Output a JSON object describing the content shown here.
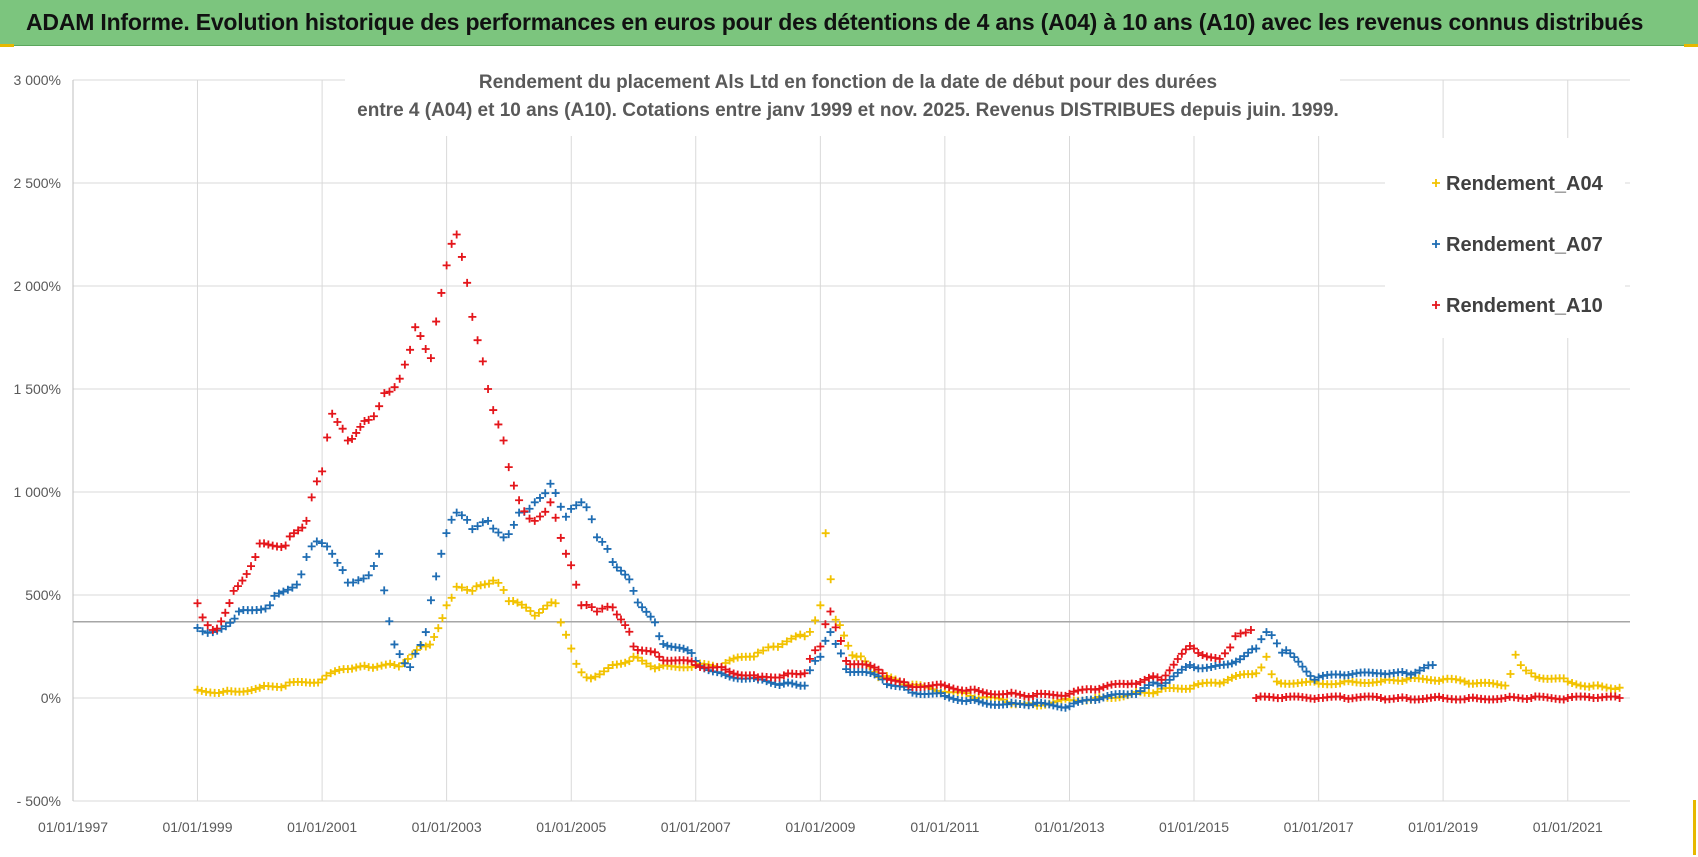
{
  "banner": {
    "title": "ADAM Informe. Evolution historique des performances en euros pour des détentions de 4 ans (A04) à 10 ans (A10) avec les revenus connus distribués"
  },
  "chart_data": {
    "type": "scatter",
    "title_lines": [
      "Rendement du placement Als Ltd en fonction de la date de début pour des durées",
      "entre 4 (A04) et 10 ans (A10). Cotations entre janv 1999 et nov. 2025. Revenus DISTRIBUES depuis juin. 1999."
    ],
    "xlabel": "",
    "ylabel": "",
    "x_range": [
      "1997-01-01",
      "2022-01-01"
    ],
    "ylim": [
      -500,
      3000
    ],
    "x_ticks": [
      "01/01/1997",
      "01/01/1999",
      "01/01/2001",
      "01/01/2003",
      "01/01/2005",
      "01/01/2007",
      "01/01/2009",
      "01/01/2011",
      "01/01/2013",
      "01/01/2015",
      "01/01/2017",
      "01/01/2019",
      "01/01/2021"
    ],
    "y_ticks": [
      {
        "value": 3000,
        "label": "3 000%"
      },
      {
        "value": 2500,
        "label": "2 500%"
      },
      {
        "value": 2000,
        "label": "2 000%"
      },
      {
        "value": 1500,
        "label": "1 500%"
      },
      {
        "value": 1000,
        "label": "1 000%"
      },
      {
        "value": 500,
        "label": "500%"
      },
      {
        "value": 0,
        "label": "0%"
      },
      {
        "value": -500,
        "label": "- 500%"
      }
    ],
    "grid": true,
    "reference_line_value": 370,
    "legend_position": "top-right",
    "marker": "+",
    "series": [
      {
        "name": "Rendement_A04",
        "color": "#f2c200",
        "points": [
          [
            "1999-01-01",
            40
          ],
          [
            "1999-06-01",
            30
          ],
          [
            "2000-01-01",
            50
          ],
          [
            "2000-06-01",
            60
          ],
          [
            "2001-01-01",
            90
          ],
          [
            "2001-06-01",
            140
          ],
          [
            "2001-10-01",
            150
          ],
          [
            "2002-03-01",
            160
          ],
          [
            "2002-09-01",
            250
          ],
          [
            "2003-01-01",
            450
          ],
          [
            "2003-03-01",
            540
          ],
          [
            "2003-06-01",
            520
          ],
          [
            "2003-10-01",
            570
          ],
          [
            "2004-01-01",
            470
          ],
          [
            "2004-06-01",
            400
          ],
          [
            "2004-10-01",
            460
          ],
          [
            "2005-01-01",
            240
          ],
          [
            "2005-04-01",
            100
          ],
          [
            "2005-09-01",
            160
          ],
          [
            "2006-01-01",
            200
          ],
          [
            "2006-06-01",
            150
          ],
          [
            "2007-01-01",
            160
          ],
          [
            "2007-06-01",
            150
          ],
          [
            "2008-01-01",
            220
          ],
          [
            "2008-04-01",
            250
          ],
          [
            "2008-10-01",
            300
          ],
          [
            "2009-01-01",
            450
          ],
          [
            "2009-02-01",
            800
          ],
          [
            "2009-04-01",
            380
          ],
          [
            "2009-08-01",
            200
          ],
          [
            "2010-01-01",
            100
          ],
          [
            "2010-06-01",
            60
          ],
          [
            "2011-01-01",
            30
          ],
          [
            "2011-06-01",
            10
          ],
          [
            "2012-01-01",
            -20
          ],
          [
            "2012-06-01",
            -30
          ],
          [
            "2013-01-01",
            -10
          ],
          [
            "2013-06-01",
            0
          ],
          [
            "2014-01-01",
            20
          ],
          [
            "2014-06-01",
            30
          ],
          [
            "2015-01-01",
            60
          ],
          [
            "2015-06-01",
            70
          ],
          [
            "2016-01-01",
            120
          ],
          [
            "2016-03-01",
            200
          ],
          [
            "2016-05-01",
            80
          ],
          [
            "2017-01-01",
            70
          ],
          [
            "2017-06-01",
            80
          ],
          [
            "2018-01-01",
            80
          ],
          [
            "2018-06-01",
            90
          ],
          [
            "2019-01-01",
            90
          ],
          [
            "2019-06-01",
            70
          ],
          [
            "2020-01-01",
            60
          ],
          [
            "2020-03-01",
            210
          ],
          [
            "2020-06-01",
            120
          ],
          [
            "2021-01-01",
            80
          ],
          [
            "2021-06-01",
            60
          ],
          [
            "2021-11-01",
            50
          ]
        ]
      },
      {
        "name": "Rendement_A07",
        "color": "#1f6db3",
        "points": [
          [
            "1999-01-01",
            340
          ],
          [
            "1999-04-01",
            320
          ],
          [
            "1999-09-01",
            420
          ],
          [
            "2000-03-01",
            450
          ],
          [
            "2000-09-01",
            600
          ],
          [
            "2000-12-01",
            760
          ],
          [
            "2001-03-01",
            700
          ],
          [
            "2001-06-01",
            560
          ],
          [
            "2001-09-01",
            580
          ],
          [
            "2001-12-01",
            700
          ],
          [
            "2002-03-01",
            260
          ],
          [
            "2002-06-01",
            150
          ],
          [
            "2002-09-01",
            320
          ],
          [
            "2002-12-01",
            700
          ],
          [
            "2003-03-01",
            900
          ],
          [
            "2003-06-01",
            820
          ],
          [
            "2003-09-01",
            860
          ],
          [
            "2003-12-01",
            780
          ],
          [
            "2004-03-01",
            900
          ],
          [
            "2004-06-01",
            950
          ],
          [
            "2004-09-01",
            1040
          ],
          [
            "2004-12-01",
            880
          ],
          [
            "2005-03-01",
            950
          ],
          [
            "2005-06-01",
            780
          ],
          [
            "2005-09-01",
            660
          ],
          [
            "2006-01-01",
            520
          ],
          [
            "2006-06-01",
            300
          ],
          [
            "2007-01-01",
            180
          ],
          [
            "2007-06-01",
            120
          ],
          [
            "2008-01-01",
            90
          ],
          [
            "2008-06-01",
            70
          ],
          [
            "2008-10-01",
            60
          ],
          [
            "2009-01-01",
            200
          ],
          [
            "2009-03-01",
            320
          ],
          [
            "2009-06-01",
            140
          ],
          [
            "2010-01-01",
            90
          ],
          [
            "2010-06-01",
            40
          ],
          [
            "2011-01-01",
            10
          ],
          [
            "2011-06-01",
            -10
          ],
          [
            "2012-01-01",
            -30
          ],
          [
            "2012-06-01",
            -30
          ],
          [
            "2013-01-01",
            -40
          ],
          [
            "2013-06-01",
            -10
          ],
          [
            "2014-01-01",
            20
          ],
          [
            "2014-06-01",
            70
          ],
          [
            "2015-01-01",
            150
          ],
          [
            "2015-06-01",
            160
          ],
          [
            "2016-01-01",
            240
          ],
          [
            "2016-03-01",
            320
          ],
          [
            "2016-06-01",
            220
          ],
          [
            "2017-01-01",
            100
          ],
          [
            "2017-06-01",
            110
          ],
          [
            "2018-01-01",
            120
          ],
          [
            "2018-06-01",
            120
          ],
          [
            "2018-11-01",
            160
          ]
        ]
      },
      {
        "name": "Rendement_A10",
        "color": "#e4161b",
        "points": [
          [
            "1999-01-01",
            460
          ],
          [
            "1999-04-01",
            330
          ],
          [
            "1999-08-01",
            520
          ],
          [
            "2000-01-01",
            750
          ],
          [
            "2000-06-01",
            740
          ],
          [
            "2000-10-01",
            860
          ],
          [
            "2001-01-01",
            1100
          ],
          [
            "2001-03-01",
            1380
          ],
          [
            "2001-06-01",
            1250
          ],
          [
            "2001-10-01",
            1350
          ],
          [
            "2002-01-01",
            1480
          ],
          [
            "2002-04-01",
            1550
          ],
          [
            "2002-07-01",
            1800
          ],
          [
            "2002-10-01",
            1650
          ],
          [
            "2003-01-01",
            2100
          ],
          [
            "2003-03-01",
            2250
          ],
          [
            "2003-06-01",
            1850
          ],
          [
            "2003-09-01",
            1500
          ],
          [
            "2003-12-01",
            1250
          ],
          [
            "2004-03-01",
            960
          ],
          [
            "2004-06-01",
            860
          ],
          [
            "2004-09-01",
            950
          ],
          [
            "2004-12-01",
            700
          ],
          [
            "2005-03-01",
            450
          ],
          [
            "2005-06-01",
            420
          ],
          [
            "2005-09-01",
            440
          ],
          [
            "2006-01-01",
            250
          ],
          [
            "2006-06-01",
            200
          ],
          [
            "2007-01-01",
            160
          ],
          [
            "2007-06-01",
            150
          ],
          [
            "2008-01-01",
            100
          ],
          [
            "2008-06-01",
            110
          ],
          [
            "2008-10-01",
            120
          ],
          [
            "2009-01-01",
            250
          ],
          [
            "2009-03-01",
            420
          ],
          [
            "2009-06-01",
            180
          ],
          [
            "2010-01-01",
            120
          ],
          [
            "2010-06-01",
            60
          ],
          [
            "2011-01-01",
            60
          ],
          [
            "2011-06-01",
            40
          ],
          [
            "2012-01-01",
            20
          ],
          [
            "2012-06-01",
            10
          ],
          [
            "2013-01-01",
            20
          ],
          [
            "2013-06-01",
            40
          ],
          [
            "2014-01-01",
            70
          ],
          [
            "2014-06-01",
            100
          ],
          [
            "2015-01-01",
            240
          ],
          [
            "2015-06-01",
            190
          ],
          [
            "2015-09-01",
            300
          ],
          [
            "2015-12-01",
            330
          ],
          [
            "2016-01-01",
            0
          ],
          [
            "2016-06-01",
            0
          ],
          [
            "2017-01-01",
            0
          ],
          [
            "2017-06-01",
            0
          ],
          [
            "2018-01-01",
            0
          ],
          [
            "2018-06-01",
            0
          ],
          [
            "2019-01-01",
            0
          ],
          [
            "2019-06-01",
            0
          ],
          [
            "2020-01-01",
            0
          ],
          [
            "2020-06-01",
            0
          ],
          [
            "2021-01-01",
            0
          ],
          [
            "2021-06-01",
            0
          ],
          [
            "2021-11-01",
            0
          ]
        ]
      }
    ]
  }
}
